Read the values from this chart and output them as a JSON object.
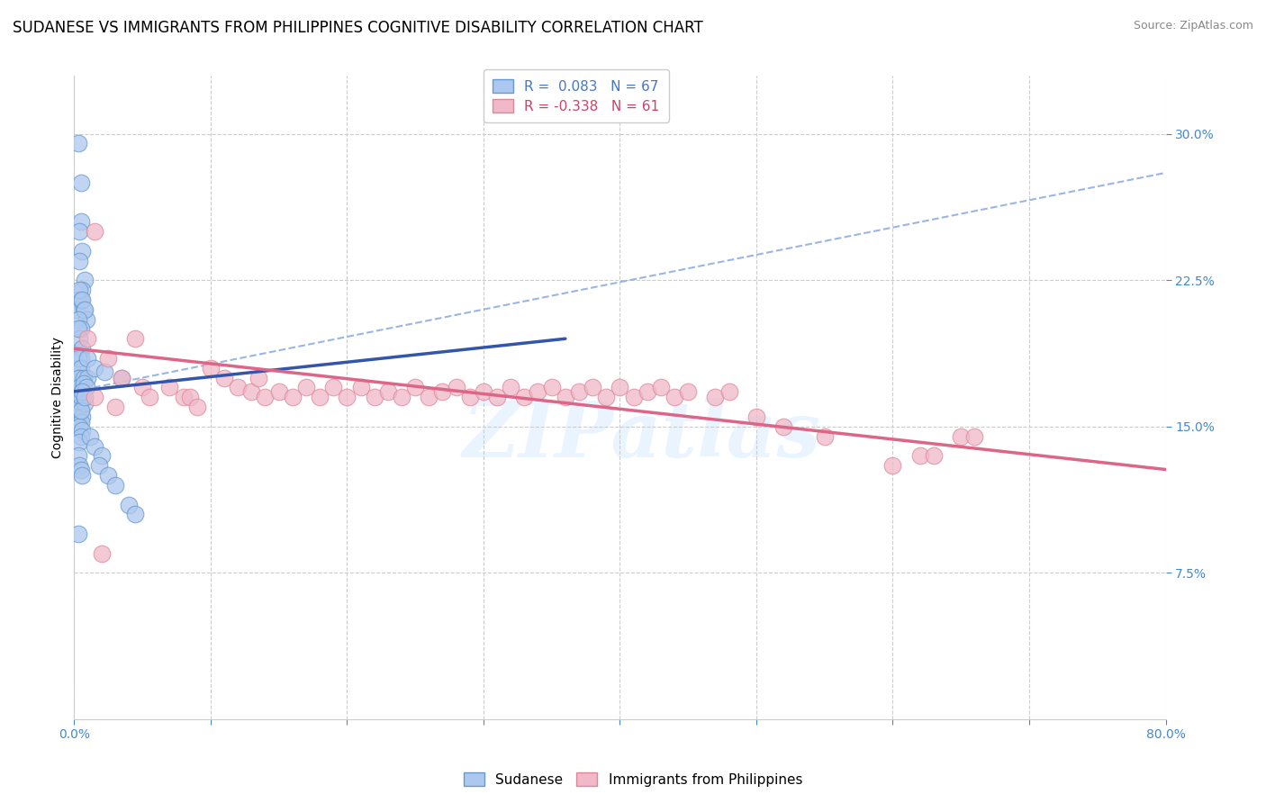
{
  "title": "SUDANESE VS IMMIGRANTS FROM PHILIPPINES COGNITIVE DISABILITY CORRELATION CHART",
  "source": "Source: ZipAtlas.com",
  "ylabel": "Cognitive Disability",
  "xlim": [
    0.0,
    80.0
  ],
  "ylim": [
    0.0,
    33.0
  ],
  "yticks": [
    7.5,
    15.0,
    22.5,
    30.0
  ],
  "watermark_text": "ZIPatlas",
  "series": [
    {
      "name": "Sudanese",
      "R": 0.083,
      "N": 67,
      "color_fill": "#adc8ee",
      "color_edge": "#6699cc",
      "color_line": "#3355aa",
      "legend_label_color": "#4477cc"
    },
    {
      "name": "Immigrants from Philippines",
      "R": -0.338,
      "N": 61,
      "color_fill": "#f0b8c8",
      "color_edge": "#dd8899",
      "color_line": "#dd6688",
      "legend_label_color": "#cc4466"
    }
  ],
  "sudanese_x": [
    0.3,
    0.5,
    0.5,
    0.4,
    0.6,
    0.4,
    0.8,
    0.6,
    0.3,
    0.2,
    0.5,
    0.7,
    0.9,
    0.4,
    0.6,
    0.8,
    0.3,
    0.5,
    0.4,
    0.3,
    0.6,
    0.5,
    0.4,
    0.3,
    0.5,
    0.4,
    0.6,
    0.3,
    0.4,
    0.5,
    0.6,
    0.4,
    0.5,
    0.3,
    0.6,
    0.5,
    0.4,
    0.6,
    0.5,
    0.4,
    0.7,
    0.6,
    0.5,
    0.8,
    0.5,
    1.0,
    0.7,
    0.9,
    0.6,
    0.8,
    1.2,
    1.5,
    2.0,
    1.8,
    2.5,
    3.0,
    1.0,
    1.5,
    2.2,
    3.5,
    0.3,
    0.4,
    0.5,
    0.6,
    4.0,
    4.5,
    0.3
  ],
  "sudanese_y": [
    29.5,
    27.5,
    25.5,
    25.0,
    24.0,
    23.5,
    22.5,
    22.0,
    21.5,
    21.0,
    21.5,
    21.0,
    20.5,
    22.0,
    21.5,
    21.0,
    20.5,
    20.0,
    19.5,
    20.0,
    19.0,
    18.5,
    18.0,
    18.5,
    18.0,
    17.5,
    17.0,
    17.5,
    17.0,
    16.5,
    16.5,
    16.0,
    15.8,
    15.5,
    15.5,
    15.2,
    15.0,
    14.8,
    14.5,
    14.2,
    17.5,
    16.8,
    16.5,
    16.2,
    15.8,
    17.5,
    17.2,
    17.0,
    16.8,
    16.5,
    14.5,
    14.0,
    13.5,
    13.0,
    12.5,
    12.0,
    18.5,
    18.0,
    17.8,
    17.5,
    13.5,
    13.0,
    12.8,
    12.5,
    11.0,
    10.5,
    9.5
  ],
  "philippines_x": [
    1.0,
    1.5,
    2.5,
    3.5,
    1.5,
    3.0,
    4.5,
    5.0,
    5.5,
    7.0,
    8.0,
    8.5,
    9.0,
    10.0,
    11.0,
    12.0,
    13.0,
    13.5,
    14.0,
    15.0,
    16.0,
    17.0,
    18.0,
    19.0,
    20.0,
    21.0,
    22.0,
    23.0,
    24.0,
    25.0,
    26.0,
    27.0,
    28.0,
    29.0,
    30.0,
    31.0,
    32.0,
    33.0,
    34.0,
    35.0,
    36.0,
    37.0,
    38.0,
    39.0,
    40.0,
    41.0,
    42.0,
    43.0,
    44.0,
    45.0,
    47.0,
    48.0,
    50.0,
    52.0,
    55.0,
    60.0,
    62.0,
    63.0,
    65.0,
    66.0,
    2.0
  ],
  "philippines_y": [
    19.5,
    25.0,
    18.5,
    17.5,
    16.5,
    16.0,
    19.5,
    17.0,
    16.5,
    17.0,
    16.5,
    16.5,
    16.0,
    18.0,
    17.5,
    17.0,
    16.8,
    17.5,
    16.5,
    16.8,
    16.5,
    17.0,
    16.5,
    17.0,
    16.5,
    17.0,
    16.5,
    16.8,
    16.5,
    17.0,
    16.5,
    16.8,
    17.0,
    16.5,
    16.8,
    16.5,
    17.0,
    16.5,
    16.8,
    17.0,
    16.5,
    16.8,
    17.0,
    16.5,
    17.0,
    16.5,
    16.8,
    17.0,
    16.5,
    16.8,
    16.5,
    16.8,
    15.5,
    15.0,
    14.5,
    13.0,
    13.5,
    13.5,
    14.5,
    14.5,
    8.5
  ],
  "blue_trend_x0": 0.0,
  "blue_trend_y0": 16.8,
  "blue_trend_x1": 36.0,
  "blue_trend_y1": 19.5,
  "blue_dashed_x0": 0.0,
  "blue_dashed_y0": 16.8,
  "blue_dashed_x1": 80.0,
  "blue_dashed_y1": 28.0,
  "pink_trend_x0": 0.0,
  "pink_trend_y0": 19.0,
  "pink_trend_x1": 80.0,
  "pink_trend_y1": 12.8,
  "title_fontsize": 12,
  "axis_label_fontsize": 10,
  "tick_fontsize": 10,
  "legend_fontsize": 11,
  "source_fontsize": 9
}
